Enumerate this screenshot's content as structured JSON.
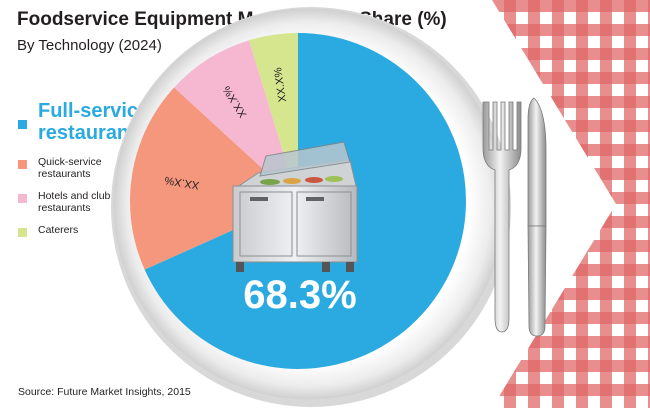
{
  "title": "Foodservice Equipment Market Value Share (%)",
  "subtitle": "By Technology (2024)",
  "source": "Source: Future Market Insights, 2015",
  "legend": [
    {
      "label": "Full-service restaurants",
      "color": "#2baae1"
    },
    {
      "label": "Quick-service restaurants",
      "color": "#f4977c"
    },
    {
      "label": "Hotels and club restaurants",
      "color": "#f6b8d1"
    },
    {
      "label": "Caterers",
      "color": "#d6e68f"
    }
  ],
  "chart_data": {
    "type": "pie",
    "title": "Foodservice Equipment Market Value Share (%)",
    "subtitle": "By Technology (2024)",
    "slices": [
      {
        "name": "Full-service restaurants",
        "value": 68.3,
        "label": "68.3%",
        "color": "#2baae1"
      },
      {
        "name": "Quick-service restaurants",
        "value": 18.5,
        "label": "XX.X%",
        "color": "#f4977c"
      },
      {
        "name": "Hotels and club restaurants",
        "value": 8.5,
        "label": "XX.X%",
        "color": "#f6b8d1"
      },
      {
        "name": "Caterers",
        "value": 4.7,
        "label": "XX.X%",
        "color": "#d6e68f"
      }
    ],
    "legend_position": "left"
  }
}
